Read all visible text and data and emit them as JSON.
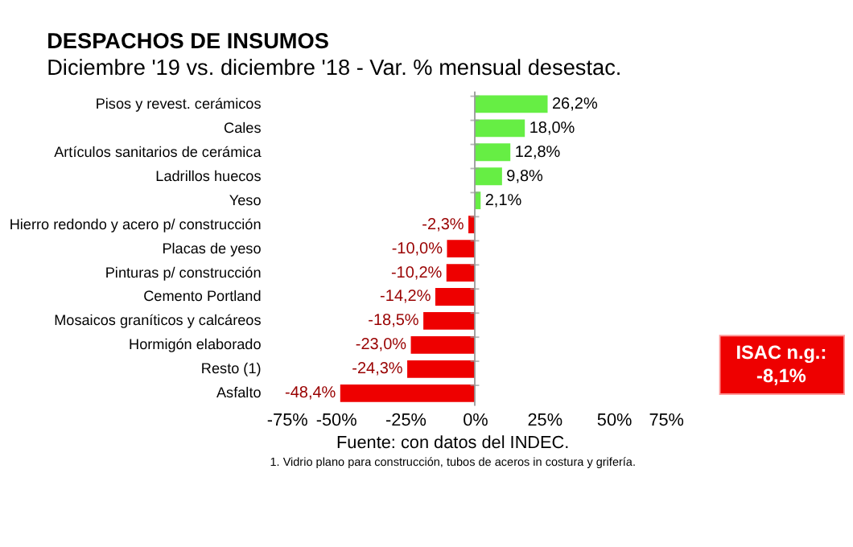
{
  "chart_data": {
    "type": "bar",
    "orientation": "horizontal",
    "title": "DESPACHOS DE INSUMOS",
    "subtitle": "Diciembre '19 vs. diciembre '18 - Var. % mensual desestac.",
    "categories": [
      "Pisos y revest. cerámicos",
      "Cales",
      "Artículos sanitarios de cerámica",
      "Ladrillos huecos",
      "Yeso",
      "Hierro redondo y acero p/ construcción",
      "Placas de yeso",
      "Pinturas p/ construcción",
      "Cemento Portland",
      "Mosaicos graníticos y calcáreos",
      "Hormigón elaborado",
      "Resto (1)",
      "Asfalto"
    ],
    "values": [
      26.2,
      18.0,
      12.8,
      9.8,
      2.1,
      -2.3,
      -10.0,
      -10.2,
      -14.2,
      -18.5,
      -23.0,
      -24.3,
      -48.4
    ],
    "value_labels": [
      "26,2%",
      "18,0%",
      "12,8%",
      "9,8%",
      "2,1%",
      "-2,3%",
      "-10,0%",
      "-10,2%",
      "-14,2%",
      "-18,5%",
      "-23,0%",
      "-24,3%",
      "-48,4%"
    ],
    "colors": [
      "#66ee44",
      "#66ee44",
      "#66ee44",
      "#66ee44",
      "#66ee44",
      "#ee0000",
      "#ee0000",
      "#ee0000",
      "#ee0000",
      "#ee0000",
      "#ee0000",
      "#ee0000",
      "#ee0000"
    ],
    "xlim": [
      -75,
      75
    ],
    "xticks": [
      {
        "value": -75,
        "label": "-75%"
      },
      {
        "value": -50,
        "label": "-50%"
      },
      {
        "value": -25,
        "label": "-25%"
      },
      {
        "value": 0,
        "label": "0%"
      },
      {
        "value": 25,
        "label": "25%"
      },
      {
        "value": 50,
        "label": "50%"
      },
      {
        "value": 75,
        "label": "75%"
      }
    ],
    "grid": false,
    "ref_lines": [
      {
        "axis": "x",
        "value": 0,
        "color": "#999999"
      }
    ],
    "annotations": [
      "ISAC n.g.:\n-8,1%",
      "Fuente: con datos del INDEC.",
      "1. Vidrio plano para construcción, tubos de aceros in costura y grifería."
    ]
  }
}
